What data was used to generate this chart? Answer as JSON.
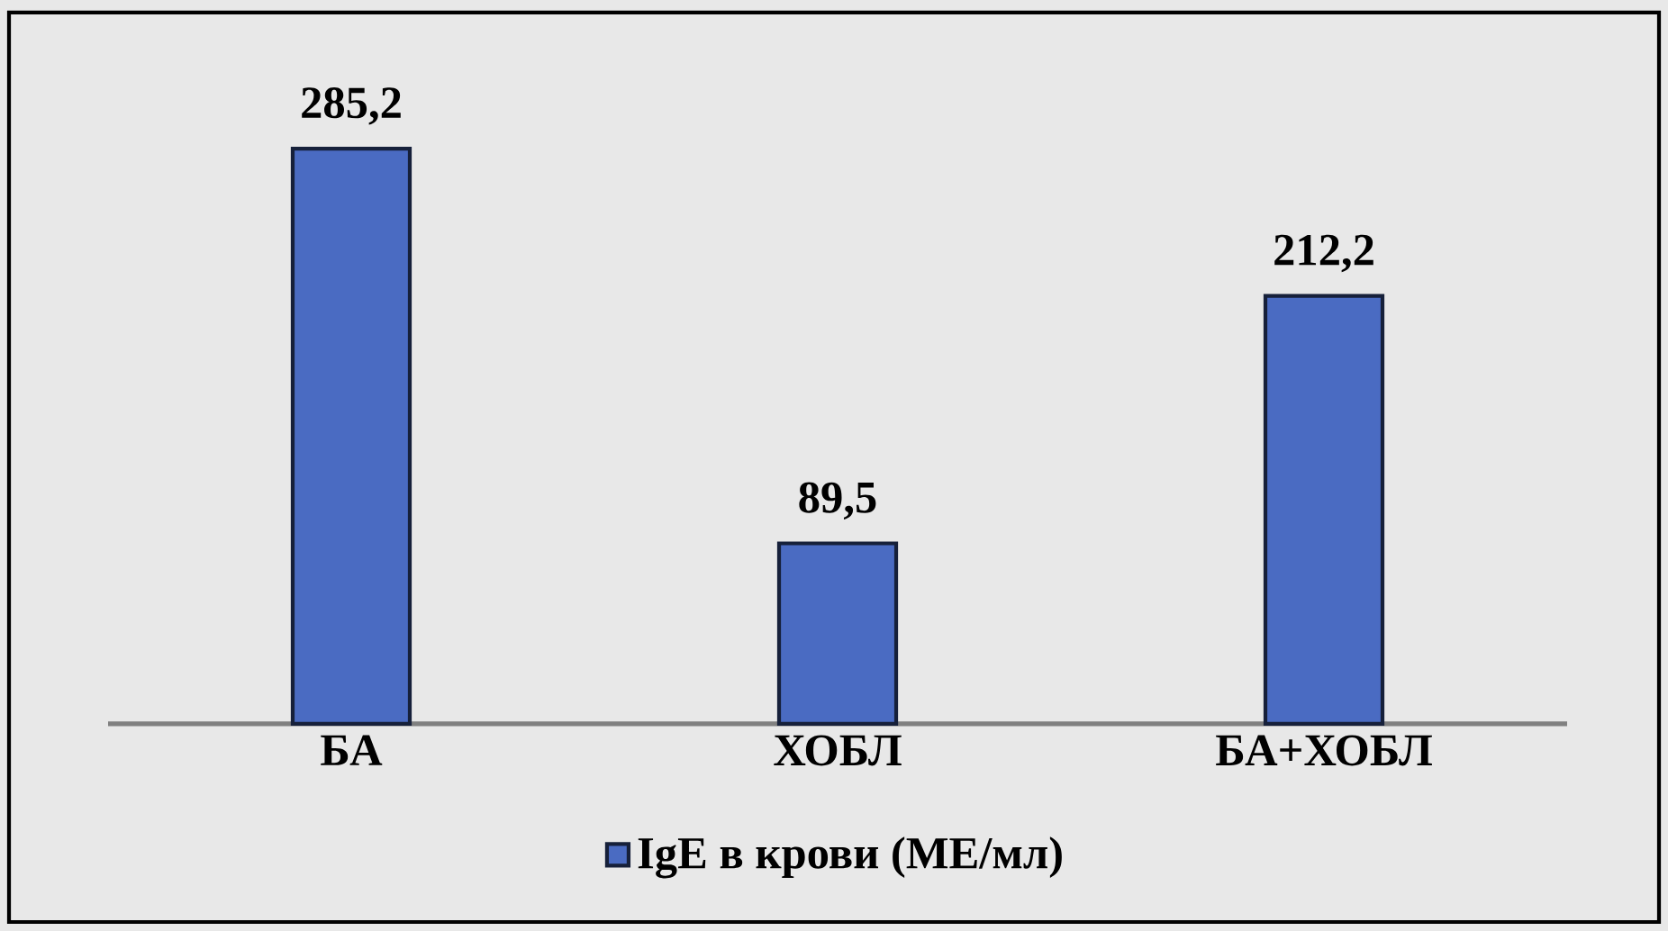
{
  "chart_data": {
    "type": "bar",
    "categories": [
      "БА",
      "ХОБЛ",
      "БА+ХОБЛ"
    ],
    "series": [
      {
        "name": "IgE в крови (МЕ/мл)",
        "color": "#4a6bc2",
        "values": [
          285.2,
          89.5,
          212.2
        ],
        "value_labels": [
          "285,2",
          "89,5",
          "212,2"
        ]
      }
    ],
    "legend": "bottom"
  }
}
